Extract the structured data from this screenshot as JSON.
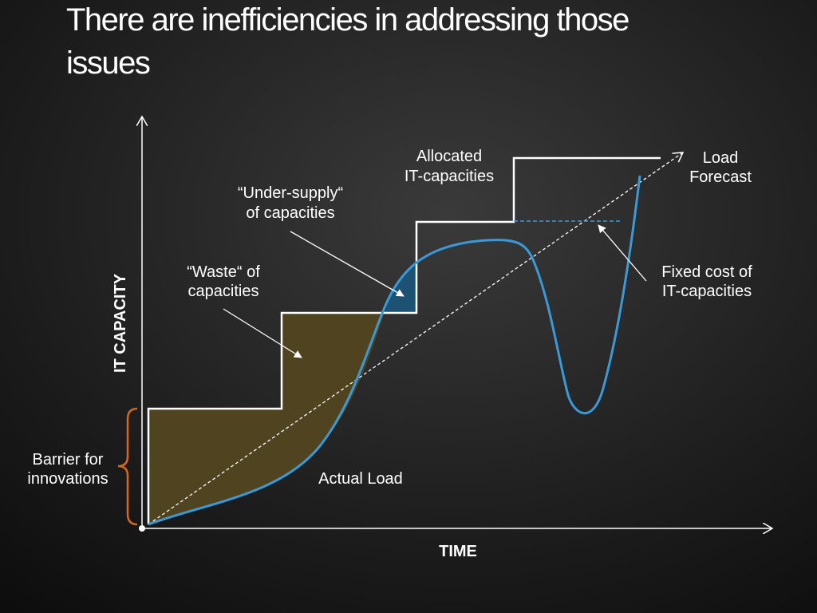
{
  "header": {
    "title": [
      "There are inefficiencies in addressing those",
      "issues"
    ]
  },
  "diagram": {
    "y_axis_label": "IT CAPACITY",
    "x_axis_label": "TIME",
    "labels": {
      "allocated": [
        "Allocated",
        "IT-capacities"
      ],
      "forecast": [
        "Load",
        "Forecast"
      ],
      "under_supply": [
        "“Under-supply“",
        "of capacities"
      ],
      "waste": [
        "“Waste“ of",
        "capacities"
      ],
      "fixed_cost": [
        "Fixed cost of",
        "IT-capacities"
      ],
      "barrier": [
        "Barrier for",
        "innovations"
      ],
      "actual_load": "Actual Load"
    }
  }
}
